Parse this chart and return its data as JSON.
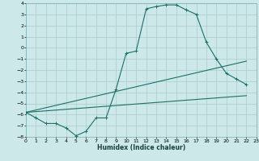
{
  "xlabel": "Humidex (Indice chaleur)",
  "bg_color": "#cce8e8",
  "grid_color": "#aacccc",
  "line_color": "#1a7068",
  "xmin": 0,
  "xmax": 23,
  "ymin": -8,
  "ymax": 4,
  "line1_x": [
    0,
    1,
    2,
    3,
    4,
    5,
    6,
    7,
    8,
    9,
    10,
    11,
    12,
    13,
    14,
    15,
    16,
    17,
    18,
    19,
    20,
    21,
    22
  ],
  "line1_y": [
    -5.8,
    -6.3,
    -6.8,
    -6.8,
    -7.2,
    -7.9,
    -7.5,
    -6.3,
    -6.3,
    -3.7,
    -0.5,
    -0.3,
    3.5,
    3.7,
    3.85,
    3.85,
    3.4,
    3.0,
    0.5,
    -1.0,
    -2.3,
    -2.8,
    -3.3
  ],
  "line2_x": [
    0,
    22
  ],
  "line2_y": [
    -5.8,
    -1.2
  ],
  "line3_x": [
    0,
    22
  ],
  "line3_y": [
    -5.8,
    -4.3
  ],
  "xticks": [
    0,
    1,
    2,
    3,
    4,
    5,
    6,
    7,
    8,
    9,
    10,
    11,
    12,
    13,
    14,
    15,
    16,
    17,
    18,
    19,
    20,
    21,
    22,
    23
  ],
  "yticks": [
    4,
    3,
    2,
    1,
    0,
    -1,
    -2,
    -3,
    -4,
    -5,
    -6,
    -7,
    -8
  ]
}
